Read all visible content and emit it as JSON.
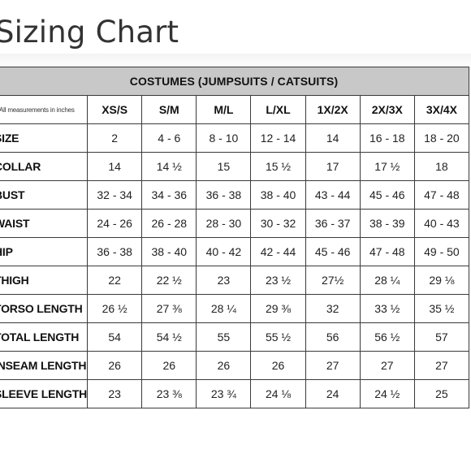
{
  "page": {
    "title": "Sizing Chart"
  },
  "table": {
    "banner": "COSTUMES (JUMPSUITS / CATSUITS)",
    "note": "All measurements in inches",
    "sizes": [
      "XS/S",
      "S/M",
      "M/L",
      "L/XL",
      "1X/2X",
      "2X/3X",
      "3X/4X"
    ],
    "rows": [
      {
        "label": "SIZE",
        "values": [
          "2",
          "4 - 6",
          "8 - 10",
          "12 - 14",
          "14",
          "16 - 18",
          "18 - 20"
        ]
      },
      {
        "label": "COLLAR",
        "values": [
          "14",
          "14 ½",
          "15",
          "15 ½",
          "17",
          "17 ½",
          "18"
        ]
      },
      {
        "label": "BUST",
        "values": [
          "32 - 34",
          "34 - 36",
          "36 - 38",
          "38 - 40",
          "43 - 44",
          "45 - 46",
          "47 - 48"
        ]
      },
      {
        "label": "WAIST",
        "values": [
          "24 - 26",
          "26 - 28",
          "28 - 30",
          "30 - 32",
          "36 - 37",
          "38 - 39",
          "40 - 43"
        ]
      },
      {
        "label": "HIP",
        "values": [
          "36 - 38",
          "38 - 40",
          "40 - 42",
          "42 - 44",
          "45 - 46",
          "47 - 48",
          "49 - 50"
        ]
      },
      {
        "label": "THIGH",
        "values": [
          "22",
          "22 ½",
          "23",
          "23 ½",
          "27½",
          "28 ¼",
          "29 ⅛"
        ]
      },
      {
        "label": "TORSO LENGTH",
        "values": [
          "26 ½",
          "27 ⅜",
          "28 ¼",
          "29 ⅜",
          "32",
          "33 ½",
          "35 ½"
        ]
      },
      {
        "label": "TOTAL LENGTH",
        "values": [
          "54",
          "54 ½",
          "55",
          "55 ½",
          "56",
          "56 ½",
          "57"
        ]
      },
      {
        "label": "INSEAM LENGTH",
        "values": [
          "26",
          "26",
          "26",
          "26",
          "27",
          "27",
          "27"
        ]
      },
      {
        "label": "SLEEVE LENGTH",
        "values": [
          "23",
          "23 ⅜",
          "23 ¾",
          "24 ⅛",
          "24",
          "24 ½",
          "25"
        ]
      }
    ]
  }
}
